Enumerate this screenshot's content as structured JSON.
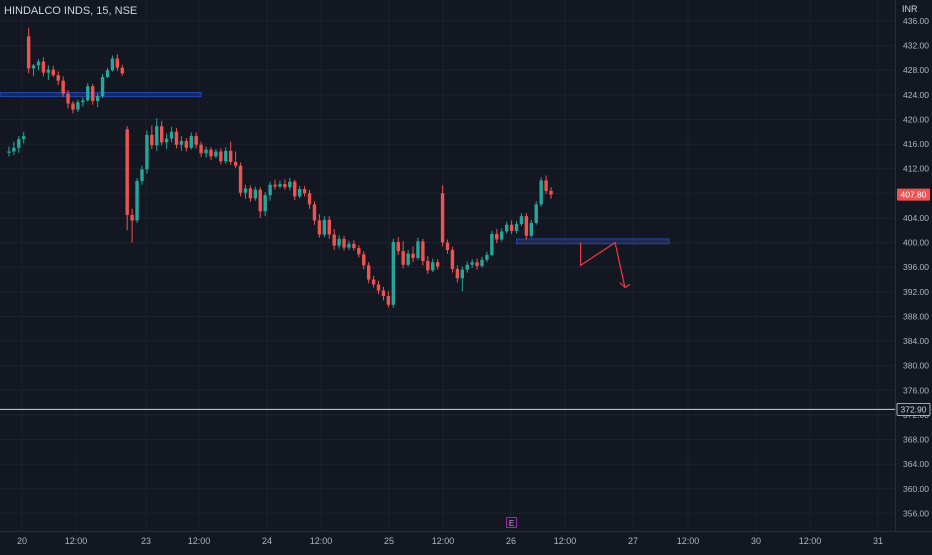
{
  "header": {
    "symbol": "HINDALCO INDS, 15, NSE",
    "currency": "INR",
    "earnings_marker": "E"
  },
  "colors": {
    "background": "#131722",
    "up": "#26a69a",
    "down": "#ef5350",
    "grid": "#1e222d",
    "axis_text": "#b2b5be",
    "last_price_badge": "#ef5350",
    "horizontal_line": "#d1d4dc",
    "zone_fill": "#1e2a52",
    "zone_border": "#2962ff",
    "drawing": "#f23645"
  },
  "chart_data": {
    "type": "candlestick",
    "ylim": [
      354,
      438
    ],
    "y_ticks": [
      "436.00",
      "432.00",
      "428.00",
      "424.00",
      "420.00",
      "416.00",
      "412.00",
      "408.00",
      "404.00",
      "400.00",
      "396.00",
      "392.00",
      "388.00",
      "384.00",
      "380.00",
      "376.00",
      "372.00",
      "368.00",
      "364.00",
      "360.00",
      "356.00"
    ],
    "x_ticks": [
      "20",
      "12:00",
      "23",
      "12:00",
      "24",
      "12:00",
      "25",
      "12:00",
      "26",
      "12:00",
      "27",
      "12:00",
      "30",
      "12:00",
      "31"
    ],
    "last_price": "407.80",
    "horizontal_line_price": "372.90",
    "zones": [
      {
        "name": "upper-zone",
        "start_bar": -1,
        "end_bar": 40,
        "top": 424.4,
        "bottom": 423.7
      },
      {
        "name": "lower-zone",
        "start_bar": 104,
        "end_bar": 135,
        "top": 400.6,
        "bottom": 399.8
      }
    ],
    "projection": [
      {
        "bar": 117,
        "price": 400.0
      },
      {
        "bar": 117,
        "price": 396.3
      },
      {
        "bar": 124,
        "price": 400.0
      },
      {
        "bar": 126,
        "price": 392.7
      }
    ],
    "candles": [
      [
        1,
        414.6,
        415.6,
        414.0,
        414.8
      ],
      [
        2,
        414.8,
        416.4,
        414.2,
        415.4
      ],
      [
        3,
        415.4,
        417.3,
        414.6,
        416.8
      ],
      [
        4,
        416.8,
        418.0,
        416.1,
        417.3
      ],
      [
        5,
        433.5,
        434.9,
        427.5,
        428.3
      ],
      [
        6,
        428.3,
        429.0,
        427.1,
        428.8
      ],
      [
        7,
        428.8,
        429.8,
        428.0,
        429.4
      ],
      [
        8,
        429.4,
        430.1,
        427.0,
        427.6
      ],
      [
        9,
        427.6,
        428.8,
        426.4,
        428.1
      ],
      [
        10,
        428.1,
        428.7,
        426.9,
        427.2
      ],
      [
        11,
        427.2,
        427.8,
        425.6,
        426.3
      ],
      [
        12,
        426.3,
        427.0,
        423.7,
        424.2
      ],
      [
        13,
        424.2,
        424.8,
        421.8,
        422.6
      ],
      [
        14,
        422.6,
        423.0,
        421.0,
        421.6
      ],
      [
        15,
        421.6,
        423.2,
        421.2,
        422.8
      ],
      [
        16,
        422.8,
        423.6,
        422.1,
        423.1
      ],
      [
        17,
        423.1,
        425.9,
        422.9,
        425.4
      ],
      [
        18,
        425.4,
        425.8,
        422.4,
        423.0
      ],
      [
        19,
        423.0,
        424.2,
        422.0,
        423.8
      ],
      [
        20,
        423.8,
        427.4,
        423.5,
        426.9
      ],
      [
        21,
        426.9,
        428.4,
        426.7,
        428.0
      ],
      [
        22,
        428.0,
        430.4,
        427.8,
        429.9
      ],
      [
        23,
        429.9,
        430.6,
        427.9,
        428.4
      ],
      [
        24,
        428.4,
        428.9,
        427.1,
        427.5
      ],
      [
        25,
        418.4,
        418.9,
        402.0,
        404.5
      ],
      [
        26,
        404.5,
        405.5,
        400.0,
        403.6
      ],
      [
        27,
        403.6,
        410.5,
        403.2,
        410.0
      ],
      [
        28,
        410.0,
        412.5,
        409.4,
        411.9
      ],
      [
        29,
        411.9,
        418.2,
        411.2,
        417.5
      ],
      [
        30,
        417.5,
        419.0,
        415.2,
        415.8
      ],
      [
        31,
        415.8,
        420.2,
        414.9,
        418.9
      ],
      [
        32,
        418.9,
        419.8,
        415.8,
        416.3
      ],
      [
        33,
        416.3,
        417.7,
        415.2,
        416.9
      ],
      [
        34,
        416.9,
        418.8,
        416.3,
        418.0
      ],
      [
        35,
        418.0,
        418.6,
        415.3,
        415.9
      ],
      [
        36,
        415.9,
        417.3,
        414.9,
        416.5
      ],
      [
        37,
        416.5,
        417.0,
        414.8,
        415.4
      ],
      [
        38,
        415.4,
        417.9,
        415.1,
        417.3
      ],
      [
        39,
        417.3,
        417.9,
        415.3,
        415.9
      ],
      [
        40,
        415.9,
        416.4,
        413.9,
        414.5
      ],
      [
        41,
        414.5,
        415.6,
        413.8,
        415.1
      ],
      [
        42,
        415.1,
        415.5,
        413.4,
        414.0
      ],
      [
        43,
        414.0,
        415.2,
        413.7,
        414.8
      ],
      [
        44,
        414.8,
        415.3,
        412.7,
        413.2
      ],
      [
        45,
        413.2,
        415.5,
        412.8,
        414.9
      ],
      [
        46,
        414.9,
        416.4,
        412.6,
        413.1
      ],
      [
        47,
        413.1,
        414.8,
        412.1,
        412.5
      ],
      [
        48,
        412.5,
        413.0,
        407.5,
        408.1
      ],
      [
        49,
        408.1,
        409.4,
        407.1,
        408.8
      ],
      [
        50,
        408.8,
        409.3,
        406.6,
        407.2
      ],
      [
        51,
        407.2,
        409.1,
        406.8,
        408.6
      ],
      [
        52,
        408.6,
        409.0,
        404.0,
        405.1
      ],
      [
        53,
        405.1,
        408.2,
        404.3,
        407.7
      ],
      [
        54,
        407.7,
        409.9,
        406.8,
        409.4
      ],
      [
        55,
        409.4,
        410.2,
        408.6,
        409.1
      ],
      [
        56,
        409.1,
        410.1,
        408.8,
        409.5
      ],
      [
        57,
        409.5,
        410.3,
        408.6,
        409.0
      ],
      [
        58,
        409.0,
        410.5,
        408.5,
        409.9
      ],
      [
        59,
        409.9,
        410.2,
        406.9,
        407.5
      ],
      [
        60,
        407.5,
        409.2,
        407.2,
        408.7
      ],
      [
        61,
        408.7,
        409.2,
        407.5,
        408.0
      ],
      [
        62,
        408.0,
        408.6,
        405.5,
        406.2
      ],
      [
        63,
        406.2,
        406.7,
        402.9,
        403.6
      ],
      [
        64,
        403.6,
        404.6,
        400.8,
        401.3
      ],
      [
        65,
        401.3,
        404.3,
        400.9,
        403.7
      ],
      [
        66,
        403.7,
        404.3,
        400.6,
        401.3
      ],
      [
        67,
        401.3,
        402.2,
        398.8,
        399.5
      ],
      [
        68,
        399.5,
        401.2,
        399.0,
        400.6
      ],
      [
        69,
        400.6,
        401.1,
        398.7,
        399.2
      ],
      [
        70,
        399.2,
        400.3,
        398.8,
        399.8
      ],
      [
        71,
        399.8,
        400.4,
        398.7,
        399.1
      ],
      [
        72,
        399.1,
        399.6,
        397.6,
        398.1
      ],
      [
        73,
        398.1,
        398.6,
        395.7,
        396.3
      ],
      [
        74,
        396.3,
        396.8,
        393.4,
        394.0
      ],
      [
        75,
        394.0,
        394.6,
        392.7,
        393.2
      ],
      [
        76,
        393.2,
        393.8,
        391.6,
        392.2
      ],
      [
        77,
        392.2,
        392.8,
        390.6,
        391.3
      ],
      [
        78,
        391.3,
        392.1,
        389.5,
        389.9
      ],
      [
        79,
        389.9,
        400.6,
        389.4,
        400.1
      ],
      [
        80,
        400.1,
        400.9,
        398.0,
        398.6
      ],
      [
        81,
        398.6,
        400.2,
        395.8,
        396.4
      ],
      [
        82,
        396.4,
        398.8,
        396.1,
        398.2
      ],
      [
        83,
        398.2,
        399.4,
        396.8,
        397.5
      ],
      [
        84,
        397.5,
        400.8,
        397.2,
        400.2
      ],
      [
        85,
        400.2,
        400.6,
        396.3,
        397.0
      ],
      [
        86,
        397.0,
        397.8,
        394.9,
        395.5
      ],
      [
        87,
        395.5,
        397.4,
        395.2,
        396.8
      ],
      [
        88,
        396.8,
        397.3,
        395.6,
        396.1
      ],
      [
        89,
        408.0,
        409.3,
        399.4,
        400.0
      ],
      [
        90,
        400.0,
        400.5,
        398.2,
        398.8
      ],
      [
        91,
        398.8,
        399.3,
        395.1,
        395.7
      ],
      [
        92,
        395.7,
        396.3,
        393.5,
        394.2
      ],
      [
        93,
        394.2,
        396.1,
        392.1,
        395.6
      ],
      [
        94,
        395.6,
        396.9,
        395.1,
        396.4
      ],
      [
        95,
        396.4,
        397.3,
        395.9,
        396.8
      ],
      [
        96,
        396.8,
        397.4,
        395.6,
        396.2
      ],
      [
        97,
        396.2,
        397.7,
        395.9,
        397.2
      ],
      [
        98,
        397.2,
        398.5,
        396.8,
        398.0
      ],
      [
        99,
        398.0,
        401.9,
        397.8,
        401.4
      ],
      [
        100,
        401.4,
        402.2,
        399.9,
        400.5
      ],
      [
        101,
        400.5,
        402.3,
        400.2,
        401.8
      ],
      [
        102,
        401.8,
        403.4,
        401.5,
        402.9
      ],
      [
        103,
        402.9,
        403.6,
        401.4,
        401.9
      ],
      [
        104,
        401.9,
        403.5,
        401.5,
        403.0
      ],
      [
        105,
        403.0,
        404.8,
        402.7,
        404.3
      ],
      [
        106,
        404.3,
        404.8,
        400.5,
        401.1
      ],
      [
        107,
        401.1,
        403.7,
        400.8,
        403.2
      ],
      [
        108,
        403.2,
        406.7,
        402.9,
        406.2
      ],
      [
        109,
        406.2,
        410.6,
        405.8,
        410.1
      ],
      [
        110,
        410.1,
        410.9,
        407.9,
        408.4
      ],
      [
        111,
        408.4,
        409.0,
        407.1,
        407.8
      ]
    ]
  }
}
